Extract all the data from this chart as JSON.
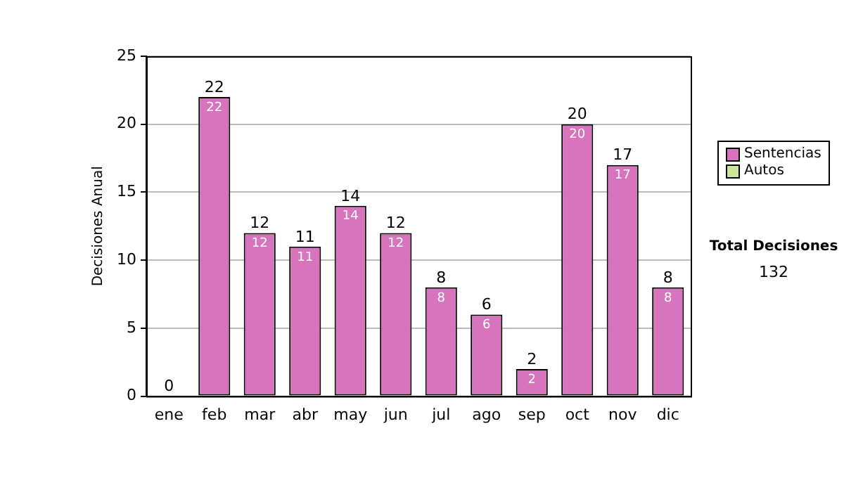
{
  "chart_data": {
    "type": "bar",
    "ylabel": "Decisiones Anual",
    "categories": [
      "ene",
      "feb",
      "mar",
      "abr",
      "may",
      "jun",
      "jul",
      "ago",
      "sep",
      "oct",
      "nov",
      "dic"
    ],
    "series": [
      {
        "name": "Sentencias",
        "color": "#d874bd",
        "values": [
          0,
          22,
          12,
          11,
          14,
          12,
          8,
          6,
          2,
          20,
          17,
          8
        ],
        "value_labels": [
          null,
          "22",
          "12",
          "11",
          "14",
          "12",
          "8",
          "6",
          "2",
          "20",
          "17",
          "8"
        ]
      },
      {
        "name": "Autos",
        "color": "#cce59a",
        "values": [
          0,
          0,
          0,
          0,
          0,
          0,
          0,
          0,
          0,
          0,
          0,
          0
        ]
      }
    ],
    "stacked": true,
    "totals": [
      "0",
      "22",
      "12",
      "11",
      "14",
      "12",
      "8",
      "6",
      "2",
      "20",
      "17",
      "8"
    ],
    "ylim": [
      0,
      25
    ],
    "yticks": [
      0,
      5,
      10,
      15,
      20,
      25
    ],
    "grid": "y",
    "legend": "right",
    "annotations": [
      "Total Decisiones",
      "132"
    ]
  }
}
